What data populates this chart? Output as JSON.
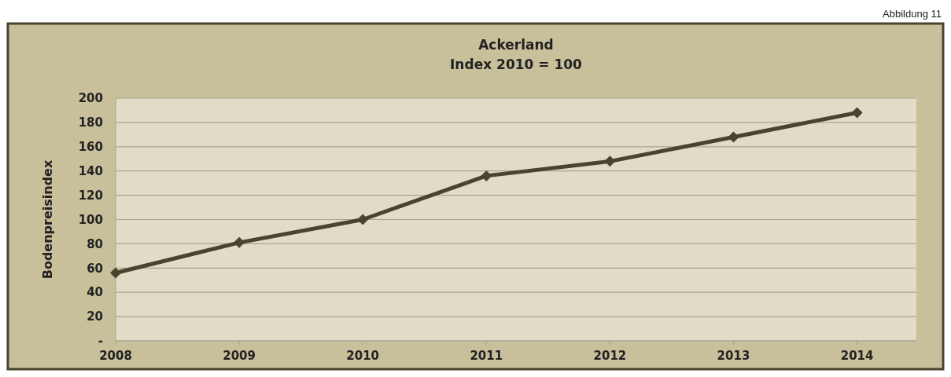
{
  "chart_data": {
    "type": "line",
    "title": "Ackerland",
    "subtitle": "Index 2010 = 100",
    "ylabel": "Bodenpreisindex",
    "annotations": [
      "Abbildung 11"
    ],
    "categories": [
      "2008",
      "2009",
      "2010",
      "2011",
      "2012",
      "2013",
      "2014"
    ],
    "series": [
      {
        "color": "#4a4330",
        "values": [
          56,
          81,
          100,
          136,
          148,
          168,
          188
        ]
      }
    ],
    "ylim": [
      0,
      200
    ],
    "yticks": [
      {
        "value": 0,
        "label": "-"
      },
      20,
      40,
      60,
      80,
      100,
      120,
      140,
      160,
      180,
      200
    ],
    "grid": "y",
    "marker": "diamond",
    "line_style": "solid"
  }
}
